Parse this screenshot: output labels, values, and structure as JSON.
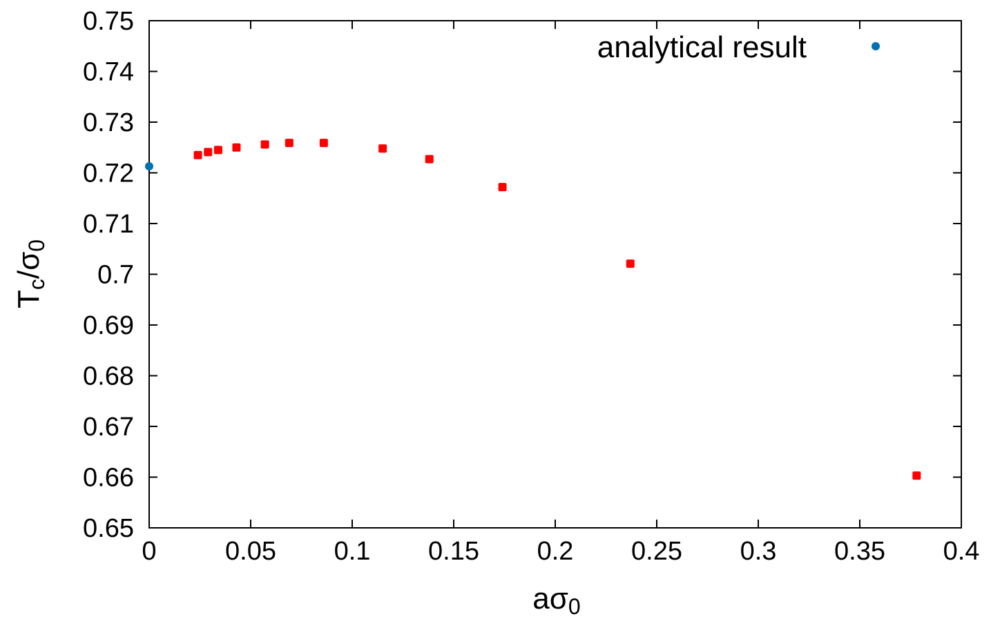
{
  "chart_data": {
    "type": "scatter",
    "title": "",
    "xlabel": {
      "main": "aσ",
      "sub": "0"
    },
    "ylabel": {
      "T": "T",
      "T_sub": "c",
      "sep": "/σ",
      "sigma_sub": "0"
    },
    "xlim": [
      0,
      0.4
    ],
    "ylim": [
      0.65,
      0.75
    ],
    "x_ticks": [
      "0",
      "0.05",
      "0.1",
      "0.15",
      "0.2",
      "0.25",
      "0.3",
      "0.35",
      "0.4"
    ],
    "x_tick_values": [
      0,
      0.05,
      0.1,
      0.15,
      0.2,
      0.25,
      0.3,
      0.35,
      0.4
    ],
    "y_ticks": [
      "0.65",
      "0.66",
      "0.67",
      "0.68",
      "0.69",
      "0.7",
      "0.71",
      "0.72",
      "0.73",
      "0.74",
      "0.75"
    ],
    "y_tick_values": [
      0.65,
      0.66,
      0.67,
      0.68,
      0.69,
      0.7,
      0.71,
      0.72,
      0.73,
      0.74,
      0.75
    ],
    "grid": false,
    "legend_position": "top-right",
    "series": [
      {
        "name": "analytical result",
        "color": "#0072b2",
        "marker": "circle",
        "points": [
          {
            "x": 0.0,
            "y": 0.7213
          }
        ]
      },
      {
        "color": "#ff0000",
        "marker": "square",
        "points": [
          {
            "x": 0.024,
            "y": 0.7235
          },
          {
            "x": 0.029,
            "y": 0.7241
          },
          {
            "x": 0.034,
            "y": 0.7245
          },
          {
            "x": 0.043,
            "y": 0.725
          },
          {
            "x": 0.057,
            "y": 0.7256
          },
          {
            "x": 0.069,
            "y": 0.7259
          },
          {
            "x": 0.086,
            "y": 0.7259
          },
          {
            "x": 0.115,
            "y": 0.7248
          },
          {
            "x": 0.138,
            "y": 0.7227
          },
          {
            "x": 0.174,
            "y": 0.7172
          },
          {
            "x": 0.237,
            "y": 0.7021
          },
          {
            "x": 0.378,
            "y": 0.6603
          }
        ]
      }
    ]
  }
}
